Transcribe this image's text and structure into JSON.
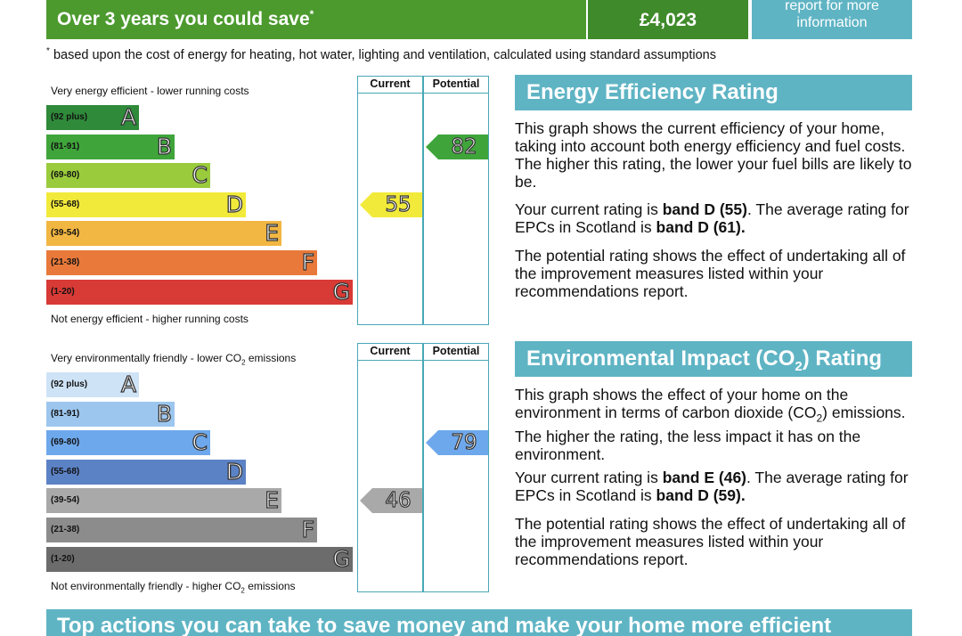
{
  "savings": {
    "label": "Over 3 years you could save",
    "footnote_mark": "*",
    "amount": "£4,023",
    "report_link_line1": "report for more",
    "report_link_line2": "information"
  },
  "footnote": {
    "mark": "*",
    "text": "based upon the cost of energy for heating, hot water, lighting and ventilation, calculated using standard assumptions"
  },
  "energy_chart": {
    "top_caption": "Very energy efficient - lower running costs",
    "bottom_caption": "Not energy efficient - higher running costs",
    "col_current": "Current",
    "col_potential": "Potential",
    "bands": [
      {
        "range": "(92 plus)",
        "letter": "A",
        "color": "#2f8a3a"
      },
      {
        "range": "(81-91)",
        "letter": "B",
        "color": "#3fa53b"
      },
      {
        "range": "(69-80)",
        "letter": "C",
        "color": "#9acb3c"
      },
      {
        "range": "(55-68)",
        "letter": "D",
        "color": "#f2ea3a"
      },
      {
        "range": "(39-54)",
        "letter": "E",
        "color": "#f2b642"
      },
      {
        "range": "(21-38)",
        "letter": "F",
        "color": "#e9793a"
      },
      {
        "range": "(1-20)",
        "letter": "G",
        "color": "#d83a35"
      }
    ],
    "current": {
      "value": "55",
      "band_index": 3,
      "color": "#f2ea3a"
    },
    "potential": {
      "value": "82",
      "band_index": 1,
      "color": "#3fa53b"
    }
  },
  "env_chart": {
    "top_caption_pre": "Very environmentally friendly - lower CO",
    "top_caption_sub": "2",
    "top_caption_post": " emissions",
    "bottom_caption_pre": "Not environmentally friendly - higher CO",
    "bottom_caption_sub": "2",
    "bottom_caption_post": " emissions",
    "col_current": "Current",
    "col_potential": "Potential",
    "bands": [
      {
        "range": "(92 plus)",
        "letter": "A",
        "color": "#cfe3f6"
      },
      {
        "range": "(81-91)",
        "letter": "B",
        "color": "#9cc6ee"
      },
      {
        "range": "(69-80)",
        "letter": "C",
        "color": "#6ea8ec"
      },
      {
        "range": "(55-68)",
        "letter": "D",
        "color": "#5c82c6"
      },
      {
        "range": "(39-54)",
        "letter": "E",
        "color": "#a9a9a9"
      },
      {
        "range": "(21-38)",
        "letter": "F",
        "color": "#8c8c8c"
      },
      {
        "range": "(1-20)",
        "letter": "G",
        "color": "#6c6c6c"
      }
    ],
    "current": {
      "value": "46",
      "band_index": 4,
      "color": "#a9a9a9"
    },
    "potential": {
      "value": "79",
      "band_index": 2,
      "color": "#6ea8ec"
    }
  },
  "energy_panel": {
    "title": "Energy Efficiency Rating",
    "p1": "This graph shows the current efficiency of your home, taking into account both energy efficiency and fuel costs. The higher this rating, the lower your fuel bills are likely to be.",
    "p2_a": "Your current rating is ",
    "p2_b": "band D (55)",
    "p2_c": ". The average rating for EPCs in Scotland is ",
    "p2_d": "band D (61).",
    "p3": "The potential rating shows the effect of undertaking all of the improvement measures listed within your recommendations report."
  },
  "env_panel": {
    "title_pre": "Environmental Impact (CO",
    "title_sub": "2",
    "title_post": ") Rating",
    "p1_a": "This graph shows the effect of your home on the environment in terms of carbon dioxide (CO",
    "p1_sub": "2",
    "p1_b": ") emissions. The higher the rating, the less impact it has on the environment.",
    "p2_a": "Your current rating is ",
    "p2_b": "band E (46)",
    "p2_c": ". The average rating for EPCs in Scotland is ",
    "p2_d": "band D (59).",
    "p3": "The potential rating shows the effect of undertaking all of the improvement measures listed within your recommendations report."
  },
  "bottom_banner": {
    "text": "Top actions you can take to save money and make your home more efficient"
  }
}
